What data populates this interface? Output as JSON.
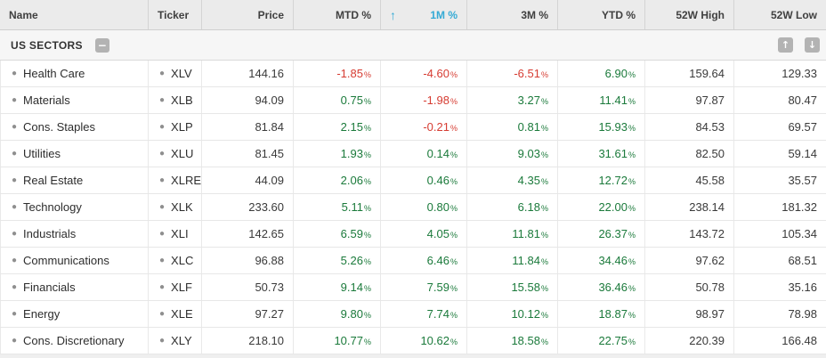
{
  "table": {
    "columns": [
      {
        "key": "name",
        "label": "Name",
        "align": "left"
      },
      {
        "key": "ticker",
        "label": "Ticker",
        "align": "left"
      },
      {
        "key": "price",
        "label": "Price",
        "align": "right"
      },
      {
        "key": "mtd",
        "label": "MTD %",
        "align": "right"
      },
      {
        "key": "m1",
        "label": "1M %",
        "align": "right",
        "sorted": true,
        "sort_direction": "ascending"
      },
      {
        "key": "m3",
        "label": "3M %",
        "align": "right"
      },
      {
        "key": "ytd",
        "label": "YTD %",
        "align": "right"
      },
      {
        "key": "high52",
        "label": "52W High",
        "align": "right"
      },
      {
        "key": "low52",
        "label": "52W Low",
        "align": "right"
      }
    ],
    "percent_columns": [
      "mtd",
      "m1",
      "m3",
      "ytd"
    ],
    "percent_suffix": "%",
    "sort": {
      "column": "1M %",
      "direction": "ascending",
      "icon": "↑"
    },
    "group": {
      "label": "US SECTORS",
      "collapse_icon": "−",
      "move_up_icon": "↑",
      "move_down_icon": "↓"
    },
    "rows": [
      {
        "name": "Health Care",
        "ticker": "XLV",
        "price": "144.16",
        "mtd": "-1.85",
        "m1": "-4.60",
        "m3": "-6.51",
        "ytd": "6.90",
        "high52": "159.64",
        "low52": "129.33"
      },
      {
        "name": "Materials",
        "ticker": "XLB",
        "price": "94.09",
        "mtd": "0.75",
        "m1": "-1.98",
        "m3": "3.27",
        "ytd": "11.41",
        "high52": "97.87",
        "low52": "80.47"
      },
      {
        "name": "Cons. Staples",
        "ticker": "XLP",
        "price": "81.84",
        "mtd": "2.15",
        "m1": "-0.21",
        "m3": "0.81",
        "ytd": "15.93",
        "high52": "84.53",
        "low52": "69.57"
      },
      {
        "name": "Utilities",
        "ticker": "XLU",
        "price": "81.45",
        "mtd": "1.93",
        "m1": "0.14",
        "m3": "9.03",
        "ytd": "31.61",
        "high52": "82.50",
        "low52": "59.14"
      },
      {
        "name": "Real Estate",
        "ticker": "XLRE",
        "price": "44.09",
        "mtd": "2.06",
        "m1": "0.46",
        "m3": "4.35",
        "ytd": "12.72",
        "high52": "45.58",
        "low52": "35.57"
      },
      {
        "name": "Technology",
        "ticker": "XLK",
        "price": "233.60",
        "mtd": "5.11",
        "m1": "0.80",
        "m3": "6.18",
        "ytd": "22.00",
        "high52": "238.14",
        "low52": "181.32"
      },
      {
        "name": "Industrials",
        "ticker": "XLI",
        "price": "142.65",
        "mtd": "6.59",
        "m1": "4.05",
        "m3": "11.81",
        "ytd": "26.37",
        "high52": "143.72",
        "low52": "105.34"
      },
      {
        "name": "Communications",
        "ticker": "XLC",
        "price": "96.88",
        "mtd": "5.26",
        "m1": "6.46",
        "m3": "11.84",
        "ytd": "34.46",
        "high52": "97.62",
        "low52": "68.51"
      },
      {
        "name": "Financials",
        "ticker": "XLF",
        "price": "50.73",
        "mtd": "9.14",
        "m1": "7.59",
        "m3": "15.58",
        "ytd": "36.46",
        "high52": "50.78",
        "low52": "35.16"
      },
      {
        "name": "Energy",
        "ticker": "XLE",
        "price": "97.27",
        "mtd": "9.80",
        "m1": "7.74",
        "m3": "10.12",
        "ytd": "18.87",
        "high52": "98.97",
        "low52": "78.98"
      },
      {
        "name": "Cons. Discretionary",
        "ticker": "XLY",
        "price": "218.10",
        "mtd": "10.77",
        "m1": "10.62",
        "m3": "18.58",
        "ytd": "22.75",
        "high52": "220.39",
        "low52": "166.48"
      }
    ]
  },
  "colors": {
    "positive": "#1b7a3b",
    "negative": "#d63c32",
    "sorted_header": "#34aad5"
  }
}
